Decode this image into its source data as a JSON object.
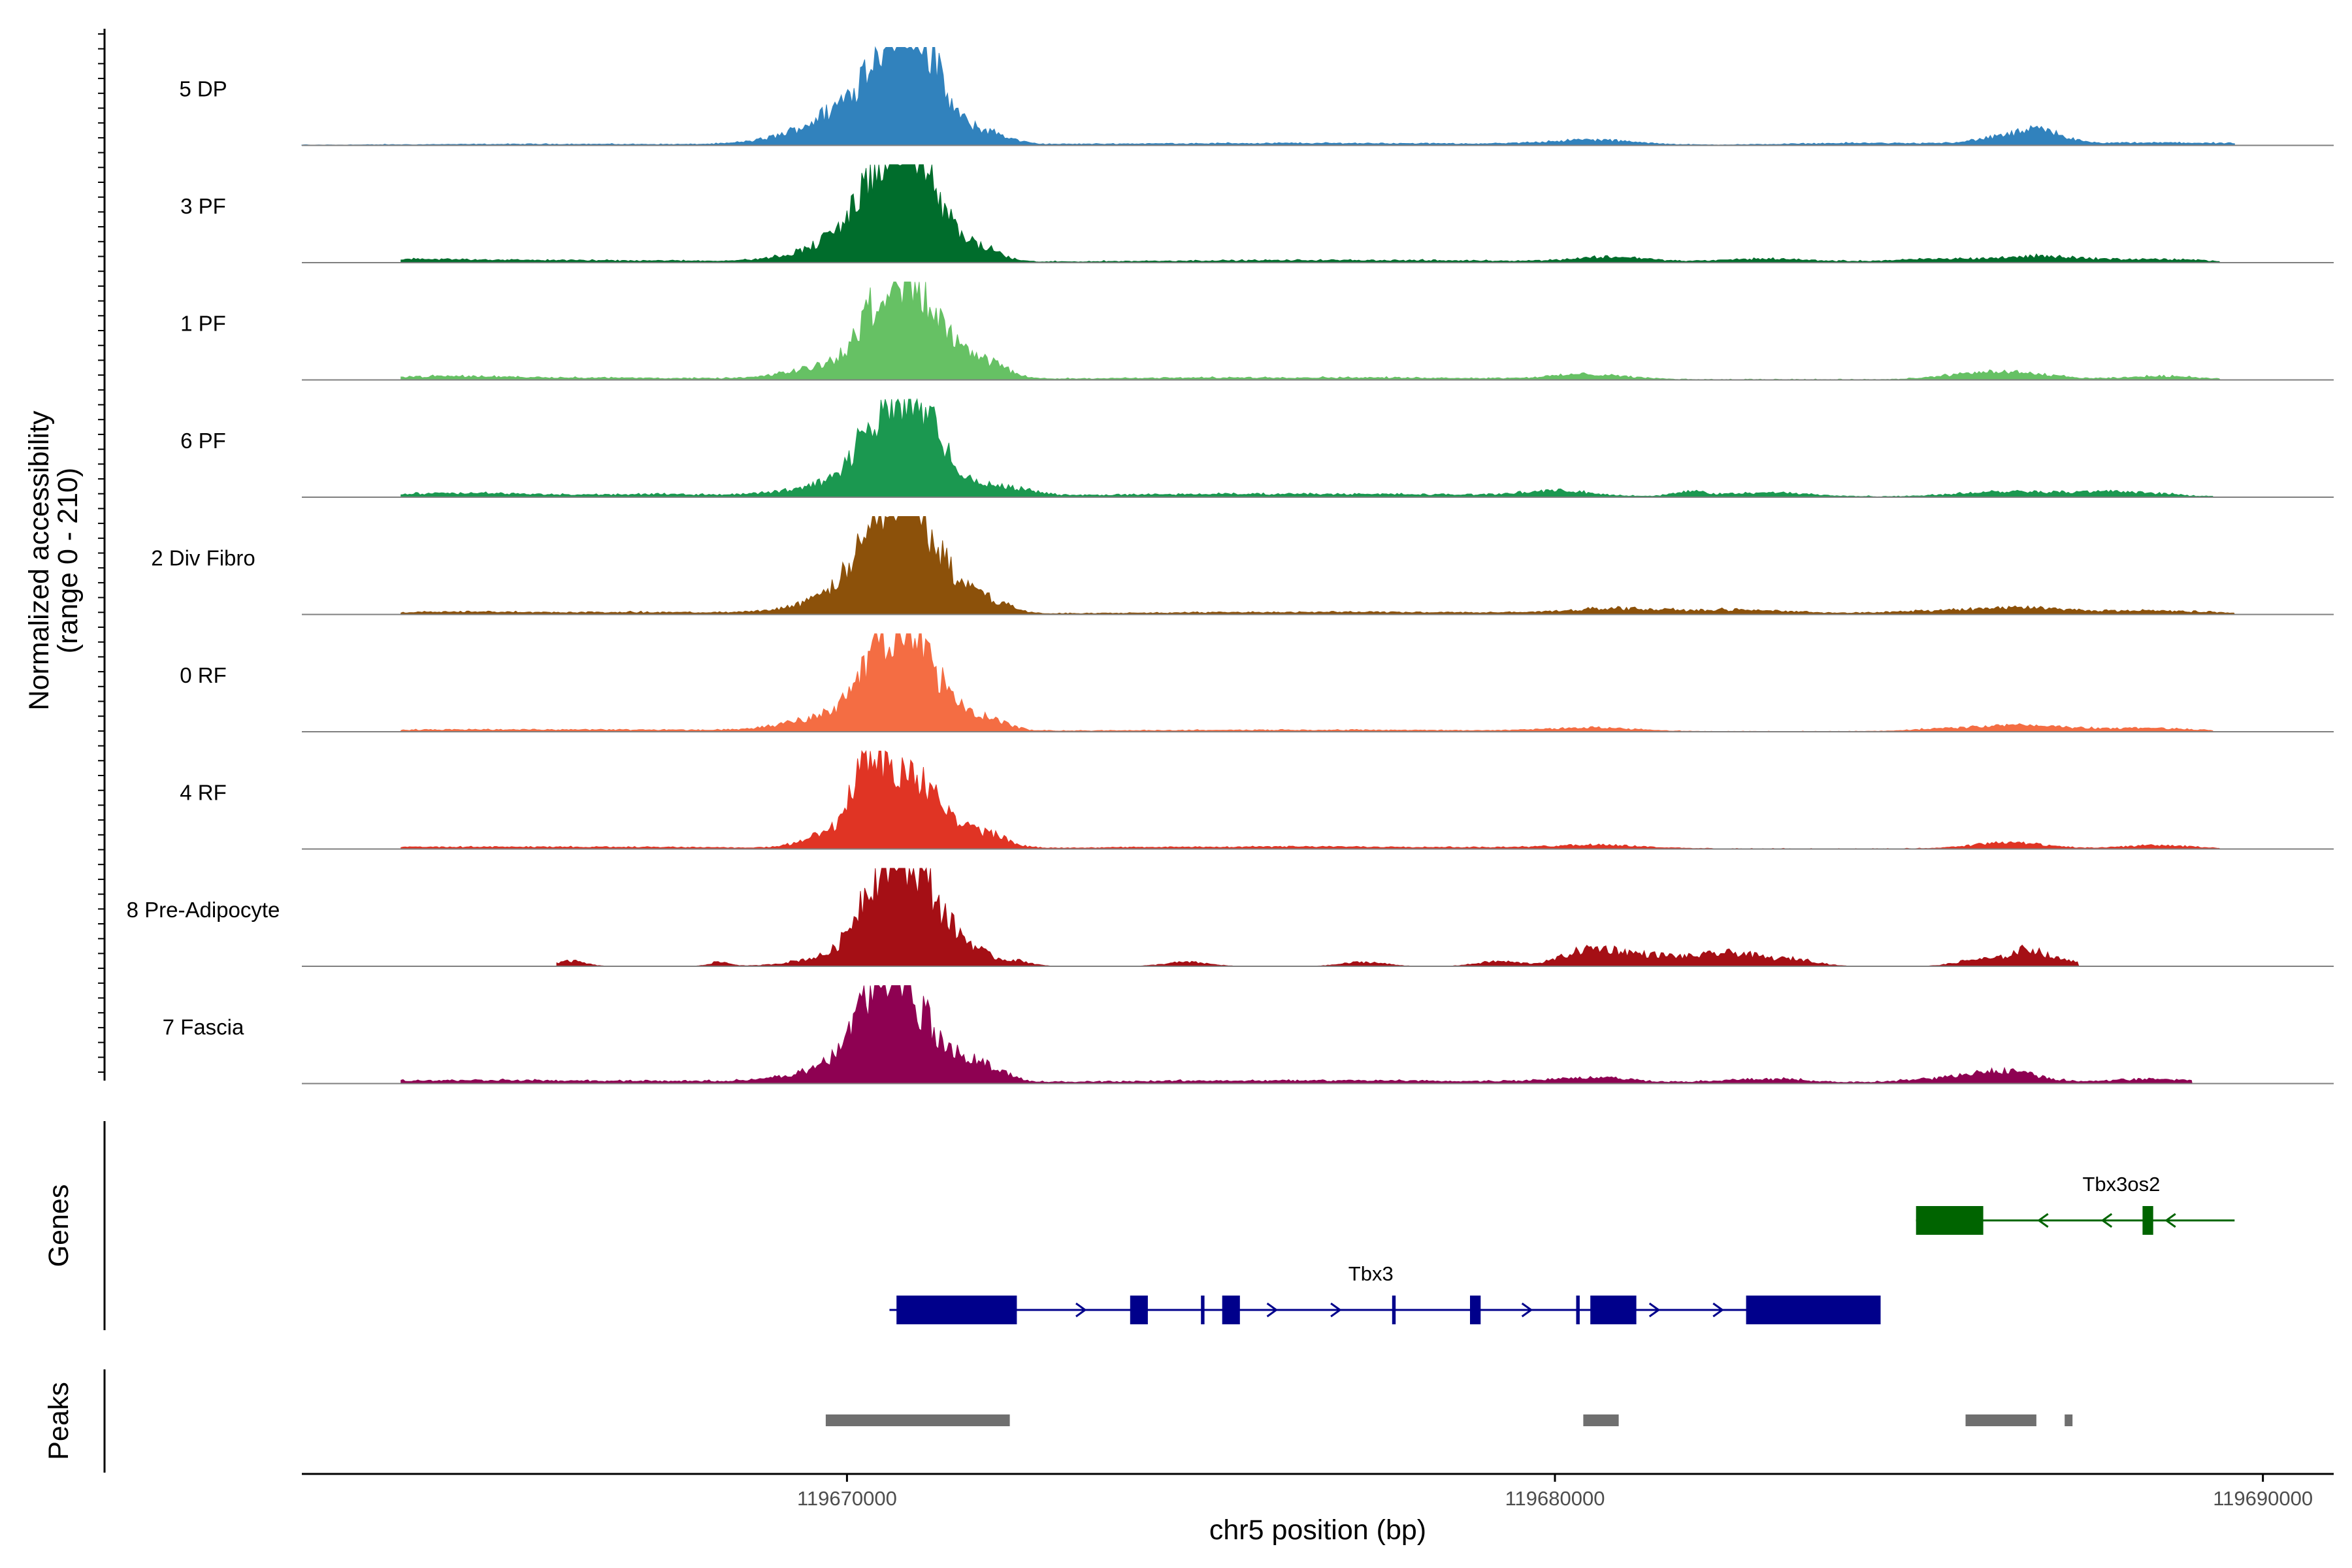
{
  "chart_data": {
    "type": "area",
    "title": "",
    "ylabel_line1": "Normalized accessibility",
    "ylabel_line2": "(range 0 - 210)",
    "y_range": [
      0,
      210
    ],
    "xlabel": "chr5 position (bp)",
    "xlim": [
      119662300,
      119691000
    ],
    "x_ticks": [
      {
        "value": 119670000,
        "label": "119670000"
      },
      {
        "value": 119680000,
        "label": "119680000"
      },
      {
        "value": 119690000,
        "label": "119690000"
      }
    ],
    "series": [
      {
        "name": "5 DP",
        "color": "#3182BD",
        "peaks": [
          [
            119669850,
            45,
            0.7
          ],
          [
            119670350,
            95,
            0.55
          ],
          [
            119670700,
            180,
            0.35
          ],
          [
            119670900,
            120,
            0.3
          ],
          [
            119671100,
            70,
            0.25
          ],
          [
            119671400,
            35,
            0.3
          ],
          [
            119671800,
            25,
            0.35
          ],
          [
            119672100,
            14,
            0.25
          ],
          [
            119680500,
            14,
            0.6
          ],
          [
            119686400,
            22,
            0.45
          ],
          [
            119686900,
            30,
            0.3
          ],
          [
            119684400,
            6,
            1.0
          ],
          [
            119688600,
            7,
            1.2
          ],
          [
            119666000,
            3,
            2.0
          ],
          [
            119675000,
            4,
            2.5
          ],
          [
            119678000,
            3,
            2.0
          ]
        ],
        "baseline": 2,
        "range": [
          119662300,
          119689600
        ]
      },
      {
        "name": "3 PF",
        "color": "#006D2C",
        "peaks": [
          [
            119669850,
            40,
            0.6
          ],
          [
            119670300,
            95,
            0.4
          ],
          [
            119670650,
            190,
            0.32
          ],
          [
            119670950,
            145,
            0.3
          ],
          [
            119671250,
            70,
            0.28
          ],
          [
            119671650,
            35,
            0.3
          ],
          [
            119672000,
            20,
            0.25
          ],
          [
            119680800,
            14,
            0.5
          ],
          [
            119683000,
            10,
            0.6
          ],
          [
            119685600,
            10,
            0.8
          ],
          [
            119686900,
            14,
            0.5
          ],
          [
            119688400,
            9,
            0.8
          ],
          [
            119664000,
            8,
            1.2
          ],
          [
            119667000,
            5,
            1.5
          ],
          [
            119675500,
            4,
            2.0
          ],
          [
            119678500,
            4,
            2.0
          ]
        ],
        "baseline": 3,
        "range": [
          119663700,
          119689400
        ]
      },
      {
        "name": "1 PF",
        "color": "#66C164",
        "peaks": [
          [
            119669850,
            40,
            0.6
          ],
          [
            119670400,
            110,
            0.32
          ],
          [
            119670700,
            155,
            0.28
          ],
          [
            119671000,
            130,
            0.3
          ],
          [
            119671350,
            60,
            0.25
          ],
          [
            119671700,
            40,
            0.3
          ],
          [
            119672100,
            28,
            0.25
          ],
          [
            119680500,
            14,
            0.5
          ],
          [
            119686000,
            18,
            0.5
          ],
          [
            119686700,
            12,
            0.5
          ],
          [
            119688600,
            10,
            0.5
          ],
          [
            119664200,
            8,
            1.0
          ],
          [
            119666500,
            5,
            1.5
          ],
          [
            119675000,
            4,
            2.0
          ],
          [
            119678000,
            4,
            2.0
          ]
        ],
        "baseline": 3,
        "range": [
          119663700,
          119689400
        ]
      },
      {
        "name": "6 PF",
        "color": "#1B9850",
        "peaks": [
          [
            119669900,
            40,
            0.6
          ],
          [
            119670350,
            95,
            0.3
          ],
          [
            119670750,
            175,
            0.35
          ],
          [
            119671050,
            130,
            0.3
          ],
          [
            119671400,
            40,
            0.25
          ],
          [
            119671900,
            25,
            0.3
          ],
          [
            119672400,
            18,
            0.3
          ],
          [
            119680000,
            14,
            0.5
          ],
          [
            119681900,
            14,
            0.2
          ],
          [
            119683000,
            12,
            0.6
          ],
          [
            119686400,
            16,
            0.7
          ],
          [
            119688000,
            14,
            0.6
          ],
          [
            119664500,
            10,
            1.0
          ],
          [
            119667500,
            7,
            1.2
          ],
          [
            119675000,
            6,
            2.0
          ],
          [
            119678000,
            5,
            2.0
          ]
        ],
        "baseline": 4,
        "range": [
          119663700,
          119689300
        ]
      },
      {
        "name": "2 Div Fibro",
        "color": "#8C510A",
        "peaks": [
          [
            119669900,
            40,
            0.6
          ],
          [
            119670300,
            110,
            0.35
          ],
          [
            119670700,
            200,
            0.32
          ],
          [
            119671000,
            140,
            0.3
          ],
          [
            119671350,
            60,
            0.25
          ],
          [
            119671700,
            40,
            0.25
          ],
          [
            119672100,
            30,
            0.25
          ],
          [
            119680800,
            14,
            0.6
          ],
          [
            119682600,
            12,
            0.8
          ],
          [
            119685600,
            10,
            0.8
          ],
          [
            119686700,
            14,
            0.6
          ],
          [
            119688400,
            10,
            0.8
          ],
          [
            119664500,
            6,
            1.2
          ],
          [
            119667500,
            5,
            1.5
          ],
          [
            119675500,
            4,
            2.0
          ],
          [
            119678500,
            4,
            2.0
          ]
        ],
        "baseline": 3,
        "range": [
          119663700,
          119689600
        ]
      },
      {
        "name": "0 RF",
        "color": "#F46D43",
        "peaks": [
          [
            119669850,
            45,
            0.6
          ],
          [
            119670350,
            100,
            0.3
          ],
          [
            119670700,
            180,
            0.3
          ],
          [
            119671000,
            120,
            0.3
          ],
          [
            119671350,
            50,
            0.25
          ],
          [
            119671700,
            30,
            0.3
          ],
          [
            119672100,
            20,
            0.25
          ],
          [
            119680500,
            10,
            0.6
          ],
          [
            119686000,
            12,
            0.7
          ],
          [
            119686900,
            12,
            0.5
          ],
          [
            119688400,
            10,
            0.6
          ],
          [
            119664500,
            5,
            1.5
          ],
          [
            119667500,
            4,
            1.5
          ],
          [
            119675000,
            3,
            2.0
          ],
          [
            119678000,
            3,
            2.0
          ]
        ],
        "baseline": 2,
        "range": [
          119663700,
          119689300
        ]
      },
      {
        "name": "4 RF",
        "color": "#E03424",
        "peaks": [
          [
            119669900,
            55,
            0.4
          ],
          [
            119670300,
            190,
            0.22
          ],
          [
            119670650,
            120,
            0.25
          ],
          [
            119670950,
            140,
            0.28
          ],
          [
            119671300,
            60,
            0.25
          ],
          [
            119671700,
            35,
            0.3
          ],
          [
            119672100,
            25,
            0.25
          ],
          [
            119680600,
            10,
            0.6
          ],
          [
            119686400,
            18,
            0.5
          ],
          [
            119688500,
            10,
            0.5
          ],
          [
            119664500,
            5,
            1.5
          ],
          [
            119667500,
            4,
            1.5
          ],
          [
            119675000,
            4,
            2.0
          ],
          [
            119678000,
            4,
            2.0
          ]
        ],
        "baseline": 2,
        "range": [
          119663700,
          119689400
        ]
      },
      {
        "name": "8 Pre-Adipocyte",
        "color": "#A50F15",
        "peaks": [
          [
            119669850,
            30,
            0.5
          ],
          [
            119670300,
            130,
            0.25
          ],
          [
            119670700,
            200,
            0.3
          ],
          [
            119671000,
            160,
            0.3
          ],
          [
            119671400,
            60,
            0.25
          ],
          [
            119671800,
            40,
            0.25
          ],
          [
            119672400,
            15,
            0.2
          ],
          [
            119680400,
            38,
            0.35
          ],
          [
            119680900,
            30,
            0.35
          ],
          [
            119681500,
            22,
            0.3
          ],
          [
            119682200,
            28,
            0.35
          ],
          [
            119682700,
            25,
            0.3
          ],
          [
            119683400,
            20,
            0.3
          ],
          [
            119686000,
            20,
            0.3
          ],
          [
            119686700,
            50,
            0.25
          ],
          [
            119687300,
            15,
            0.2
          ],
          [
            119666100,
            15,
            0.2
          ],
          [
            119668200,
            12,
            0.15
          ],
          [
            119674800,
            12,
            0.3
          ],
          [
            119677300,
            12,
            0.3
          ],
          [
            119679200,
            14,
            0.3
          ]
        ],
        "baseline": 0,
        "range": [
          119665900,
          119687400
        ]
      },
      {
        "name": "7 Fascia",
        "color": "#8E0152",
        "peaks": [
          [
            119669900,
            45,
            0.6
          ],
          [
            119670300,
            150,
            0.3
          ],
          [
            119670650,
            175,
            0.28
          ],
          [
            119671000,
            130,
            0.3
          ],
          [
            119671400,
            50,
            0.25
          ],
          [
            119671800,
            35,
            0.25
          ],
          [
            119672100,
            25,
            0.25
          ],
          [
            119680500,
            14,
            0.6
          ],
          [
            119683000,
            12,
            0.6
          ],
          [
            119686400,
            30,
            0.45
          ],
          [
            119685600,
            14,
            0.6
          ],
          [
            119688400,
            12,
            0.6
          ],
          [
            119664500,
            8,
            1.2
          ],
          [
            119667500,
            6,
            1.4
          ],
          [
            119675000,
            5,
            2.0
          ],
          [
            119678000,
            5,
            2.0
          ]
        ],
        "baseline": 4,
        "range": [
          119663700,
          119689000
        ]
      }
    ],
    "genes_track_label": "Genes",
    "genes": [
      {
        "name": "Tbx3",
        "strand": "+",
        "color": "#00008B",
        "start": 119670600,
        "end": 119684600,
        "exons": [
          [
            119670700,
            119672400
          ],
          [
            119674000,
            119674250
          ],
          [
            119675000,
            119675050
          ],
          [
            119675300,
            119675550
          ],
          [
            119677700,
            119677750
          ],
          [
            119678800,
            119678950
          ],
          [
            119680300,
            119680350
          ],
          [
            119680500,
            119681150
          ],
          [
            119682700,
            119684600
          ]
        ]
      },
      {
        "name": "Tbx3os2",
        "strand": "-",
        "color": "#006400",
        "start": 119685100,
        "end": 119689600,
        "exons": [
          [
            119685100,
            119686050
          ],
          [
            119688300,
            119688450
          ]
        ]
      }
    ],
    "peaks_track_label": "Peaks",
    "peak_regions": [
      [
        119669700,
        119672300
      ],
      [
        119680400,
        119680900
      ],
      [
        119685800,
        119686800
      ],
      [
        119687200,
        119687300
      ]
    ]
  }
}
